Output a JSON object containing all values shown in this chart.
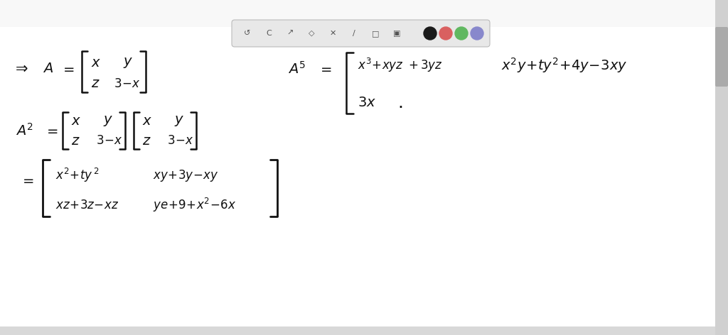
{
  "bg_color": "#f8f8f8",
  "white_area_color": "#ffffff",
  "toolbar_bg": "#e0e0e0",
  "text_color": "#111111",
  "toolbar_circles": [
    "#1a1a1a",
    "#d96060",
    "#60b860",
    "#8888cc"
  ],
  "math_fontsize": 14,
  "small_fontsize": 11,
  "lw": 1.8,
  "blen": 0.08,
  "figw": 10.24,
  "figh": 4.72
}
